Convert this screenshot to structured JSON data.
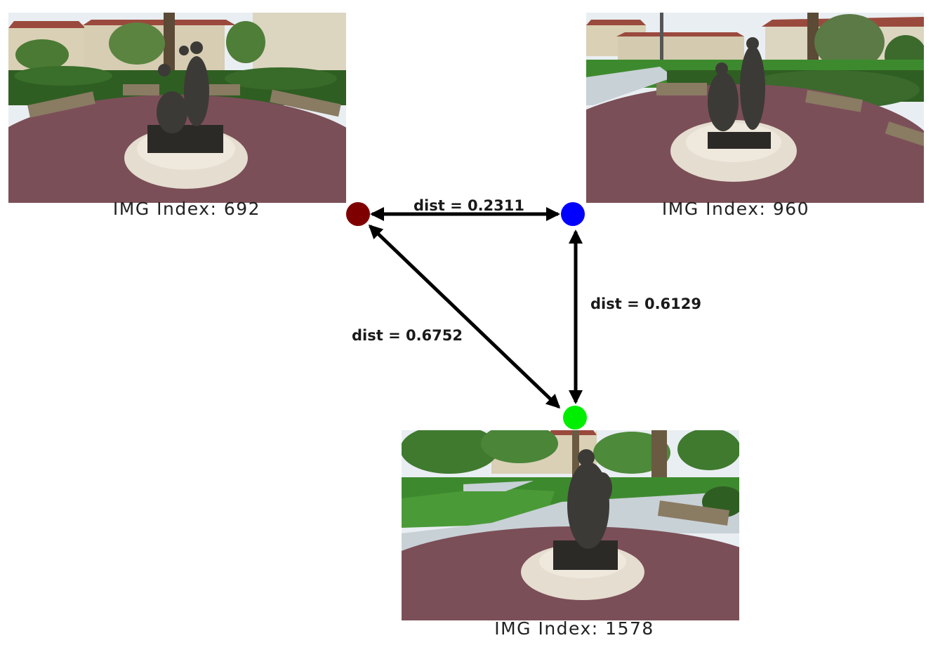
{
  "images": [
    {
      "id": "img-692",
      "caption": "IMG Index: 692",
      "node_color": "#7f0000"
    },
    {
      "id": "img-960",
      "caption": "IMG Index: 960",
      "node_color": "#0000ff"
    },
    {
      "id": "img-1578",
      "caption": "IMG Index: 1578",
      "node_color": "#00ee00"
    }
  ],
  "edges": [
    {
      "from": "img-692",
      "to": "img-960",
      "label": "dist = 0.2311"
    },
    {
      "from": "img-960",
      "to": "img-1578",
      "label": "dist = 0.6129"
    },
    {
      "from": "img-692",
      "to": "img-1578",
      "label": "dist = 0.6752"
    }
  ],
  "colors": {
    "arrow": "#000000",
    "sky": "#e9eef2",
    "brick": "#7b4f58",
    "grass": "#3d8a2e",
    "hedge": "#2f5e22",
    "building": "#d9d0b5",
    "roof": "#9a4a3d",
    "pedestal": "#e5ddd0",
    "statue": "#3c3a36",
    "bench": "#8a7b63",
    "path": "#c8d1d6"
  }
}
